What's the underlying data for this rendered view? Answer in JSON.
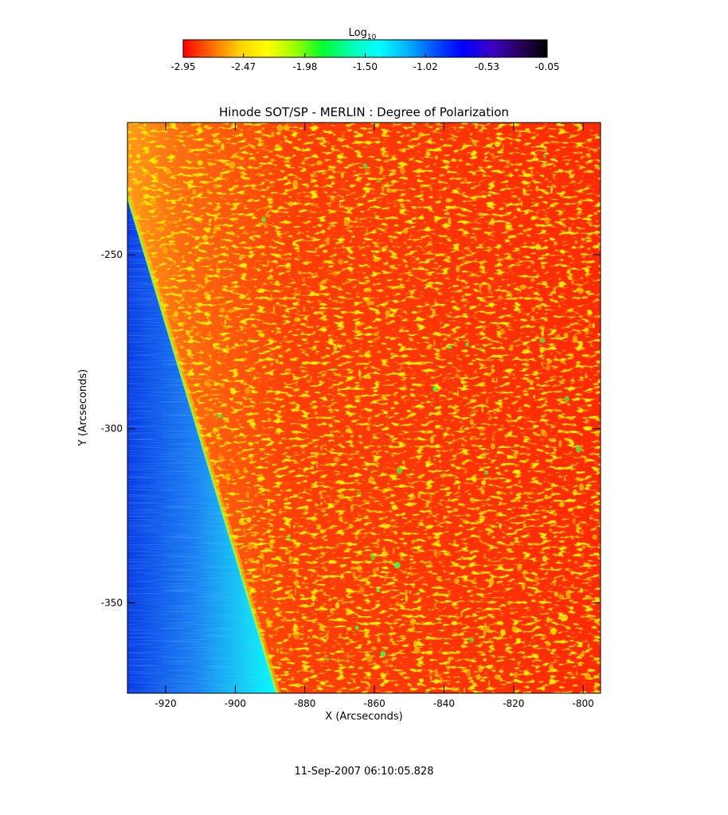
{
  "colorbar": {
    "label_main": "Log",
    "label_sub": "10",
    "ticks": [
      "-2.95",
      "-2.47",
      "-1.98",
      "-1.50",
      "-1.02",
      "-0.53",
      "-0.05"
    ],
    "tick_values": [
      -2.95,
      -2.47,
      -1.98,
      -1.5,
      -1.02,
      -0.53,
      -0.05
    ],
    "colormap": [
      "#ff0000",
      "#ff6a00",
      "#ffd000",
      "#ffff00",
      "#9cff00",
      "#00ff30",
      "#00ffb0",
      "#00ffff",
      "#00b4ff",
      "#0050ff",
      "#0000ff",
      "#3a00c8",
      "#2a0060",
      "#000000"
    ]
  },
  "plot": {
    "title": "Hinode SOT/SP - MERLIN : Degree of Polarization",
    "xlabel": "X (Arcseconds)",
    "ylabel": "Y (Arcseconds)",
    "xlim": [
      -931,
      -795
    ],
    "ylim": [
      -376,
      -212
    ],
    "xticks": [
      {
        "value": -920,
        "label": "-920"
      },
      {
        "value": -900,
        "label": "-900"
      },
      {
        "value": -880,
        "label": "-880"
      },
      {
        "value": -860,
        "label": "-860"
      },
      {
        "value": -840,
        "label": "-840"
      },
      {
        "value": -820,
        "label": "-820"
      },
      {
        "value": -800,
        "label": "-800"
      }
    ],
    "yticks": [
      {
        "value": -250,
        "label": "-250"
      },
      {
        "value": -300,
        "label": "-300"
      },
      {
        "value": -350,
        "label": "-350"
      }
    ],
    "limb_x_at_top": -931,
    "limb_x_at_bottom": -888,
    "off_limb_color": "#0a5cf0",
    "disk_color": "#ff3a08"
  },
  "timestamp": "11-Sep-2007 06:10:05.828"
}
